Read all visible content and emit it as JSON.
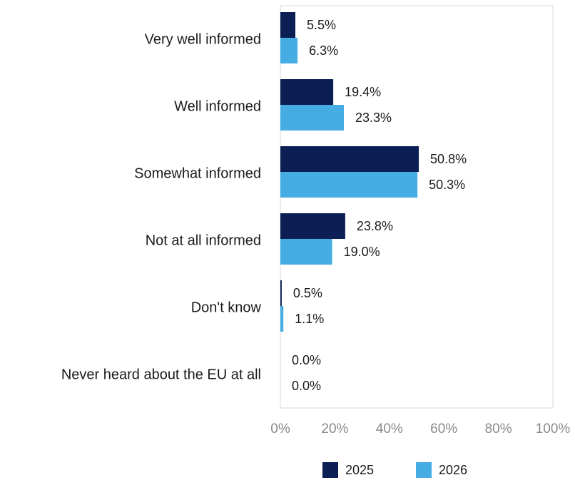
{
  "chart_data": {
    "type": "bar",
    "orientation": "horizontal",
    "categories": [
      "Very well informed",
      "Well informed",
      "Somewhat informed",
      "Not at all informed",
      "Don't know",
      "Never heard about the EU at all"
    ],
    "series": [
      {
        "name": "2025",
        "color": "#0b1f54",
        "values": [
          5.5,
          19.4,
          50.8,
          23.8,
          0.5,
          0.0
        ],
        "labels": [
          "5.5%",
          "19.4%",
          "50.8%",
          "23.8%",
          "0.5%",
          "0.0%"
        ]
      },
      {
        "name": "2026",
        "color": "#45ade3",
        "values": [
          6.3,
          23.3,
          50.3,
          19.0,
          1.1,
          0.0
        ],
        "labels": [
          "6.3%",
          "23.3%",
          "50.3%",
          "19.0%",
          "1.1%",
          "0.0%"
        ]
      }
    ],
    "xlim": [
      0,
      100
    ],
    "xticks": [
      "0%",
      "20%",
      "40%",
      "60%",
      "80%",
      "100%"
    ],
    "grid": false,
    "legend_position": "bottom"
  }
}
